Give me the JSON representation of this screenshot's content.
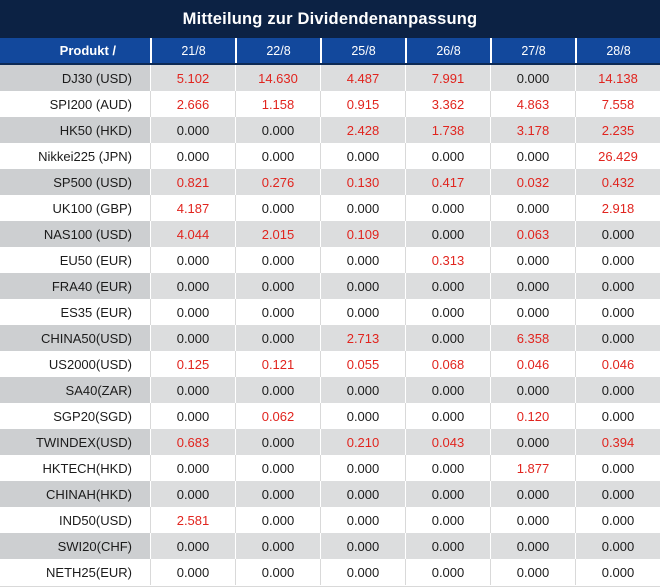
{
  "title": "Mitteilung zur Dividendenanpassung",
  "header": {
    "product_label": "Produkt /",
    "dates": [
      "21/8",
      "22/8",
      "25/8",
      "26/8",
      "27/8",
      "28/8"
    ]
  },
  "rows": [
    {
      "label": "DJ30 (USD)",
      "values": [
        "5.102",
        "14.630",
        "4.487",
        "7.991",
        "0.000",
        "14.138"
      ]
    },
    {
      "label": "SPI200 (AUD)",
      "values": [
        "2.666",
        "1.158",
        "0.915",
        "3.362",
        "4.863",
        "7.558"
      ]
    },
    {
      "label": "HK50 (HKD)",
      "values": [
        "0.000",
        "0.000",
        "2.428",
        "1.738",
        "3.178",
        "2.235"
      ]
    },
    {
      "label": "Nikkei225 (JPN)",
      "values": [
        "0.000",
        "0.000",
        "0.000",
        "0.000",
        "0.000",
        "26.429"
      ]
    },
    {
      "label": "SP500 (USD)",
      "values": [
        "0.821",
        "0.276",
        "0.130",
        "0.417",
        "0.032",
        "0.432"
      ]
    },
    {
      "label": "UK100 (GBP)",
      "values": [
        "4.187",
        "0.000",
        "0.000",
        "0.000",
        "0.000",
        "2.918"
      ]
    },
    {
      "label": "NAS100 (USD)",
      "values": [
        "4.044",
        "2.015",
        "0.109",
        "0.000",
        "0.063",
        "0.000"
      ]
    },
    {
      "label": "EU50 (EUR)",
      "values": [
        "0.000",
        "0.000",
        "0.000",
        "0.313",
        "0.000",
        "0.000"
      ]
    },
    {
      "label": "FRA40 (EUR)",
      "values": [
        "0.000",
        "0.000",
        "0.000",
        "0.000",
        "0.000",
        "0.000"
      ]
    },
    {
      "label": "ES35 (EUR)",
      "values": [
        "0.000",
        "0.000",
        "0.000",
        "0.000",
        "0.000",
        "0.000"
      ]
    },
    {
      "label": "CHINA50(USD)",
      "values": [
        "0.000",
        "0.000",
        "2.713",
        "0.000",
        "6.358",
        "0.000"
      ]
    },
    {
      "label": "US2000(USD)",
      "values": [
        "0.125",
        "0.121",
        "0.055",
        "0.068",
        "0.046",
        "0.046"
      ]
    },
    {
      "label": "SA40(ZAR)",
      "values": [
        "0.000",
        "0.000",
        "0.000",
        "0.000",
        "0.000",
        "0.000"
      ]
    },
    {
      "label": "SGP20(SGD)",
      "values": [
        "0.000",
        "0.062",
        "0.000",
        "0.000",
        "0.120",
        "0.000"
      ]
    },
    {
      "label": "TWINDEX(USD)",
      "values": [
        "0.683",
        "0.000",
        "0.210",
        "0.043",
        "0.000",
        "0.394"
      ]
    },
    {
      "label": "HKTECH(HKD)",
      "values": [
        "0.000",
        "0.000",
        "0.000",
        "0.000",
        "1.877",
        "0.000"
      ]
    },
    {
      "label": "CHINAH(HKD)",
      "values": [
        "0.000",
        "0.000",
        "0.000",
        "0.000",
        "0.000",
        "0.000"
      ]
    },
    {
      "label": "IND50(USD)",
      "values": [
        "2.581",
        "0.000",
        "0.000",
        "0.000",
        "0.000",
        "0.000"
      ]
    },
    {
      "label": "SWI20(CHF)",
      "values": [
        "0.000",
        "0.000",
        "0.000",
        "0.000",
        "0.000",
        "0.000"
      ]
    },
    {
      "label": "NETH25(EUR)",
      "values": [
        "0.000",
        "0.000",
        "0.000",
        "0.000",
        "0.000",
        "0.000"
      ]
    }
  ],
  "colors": {
    "title_bg": "#0c2244",
    "header_bg": "#12489c",
    "header_text": "#ffffff",
    "header_bottom_edge": "#0d2a55",
    "row_alt_label_bg": "#cdcfd1",
    "row_alt_value_bg": "#dcddde",
    "row_bg": "#ffffff",
    "value_nonzero": "#e1241e",
    "value_zero": "#1b1b1b"
  }
}
